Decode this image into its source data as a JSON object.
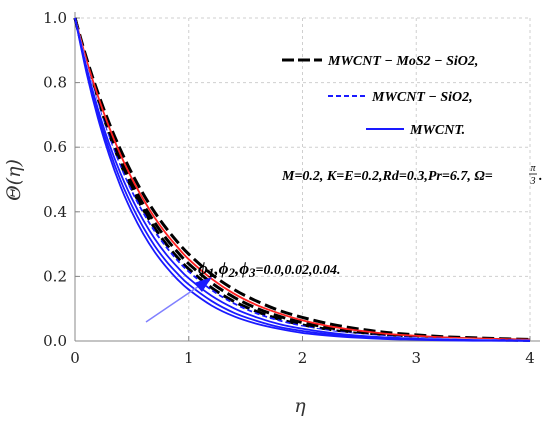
{
  "chart_data": {
    "type": "line",
    "xlabel": "η",
    "ylabel": "Θ(η)",
    "xlim": [
      0,
      4
    ],
    "ylim": [
      0,
      1
    ],
    "xticks": [
      "0",
      "1",
      "2",
      "3",
      "4"
    ],
    "yticks": [
      "0.0",
      "0.2",
      "0.4",
      "0.6",
      "0.8",
      "1.0"
    ],
    "grid": true,
    "legend": {
      "placement": "top-right",
      "entries": [
        {
          "label": "MWCNT − MoS2 − SiO2,",
          "color": "#000000",
          "style": "long-dash"
        },
        {
          "label": "MWCNT − SiO2,",
          "color": "#1a1aff",
          "style": "short-dash"
        },
        {
          "label": "MWCNT.",
          "color": "#1a1aff",
          "style": "solid"
        }
      ]
    },
    "parameters_text": "M=0.2, K=E=0.2,Rd=0.3,Pr=6.7, Ω=",
    "omega_num": "π",
    "omega_den": "3",
    "phi_annotation": {
      "p1": "ϕ",
      "s1": "1",
      "p2": "ϕ",
      "s2": "2",
      "p3": "ϕ",
      "s3": "3",
      "values": "=0.0,0.02,0.04."
    },
    "x": [
      0,
      0.1,
      0.2,
      0.3,
      0.4,
      0.5,
      0.6,
      0.7,
      0.8,
      0.9,
      1.0,
      1.2,
      1.4,
      1.6,
      1.8,
      2.0,
      2.25,
      2.5,
      2.75,
      3.0,
      3.25,
      3.5,
      3.75,
      4.0
    ],
    "series": [
      {
        "group": "MWCNT − MoS2 − SiO2",
        "color": "#000000",
        "style": "long-dash",
        "values": [
          1,
          0.877,
          0.77,
          0.675,
          0.592,
          0.519,
          0.455,
          0.399,
          0.35,
          0.307,
          0.269,
          0.207,
          0.159,
          0.123,
          0.094,
          0.073,
          0.052,
          0.037,
          0.026,
          0.019,
          0.013,
          0.01,
          0.007,
          0.005
        ]
      },
      {
        "group": "MWCNT − MoS2 − SiO2",
        "color": "#000000",
        "style": "long-dash",
        "values": [
          1,
          0.866,
          0.751,
          0.651,
          0.564,
          0.489,
          0.423,
          0.367,
          0.318,
          0.276,
          0.239,
          0.18,
          0.135,
          0.101,
          0.076,
          0.057,
          0.04,
          0.027,
          0.019,
          0.013,
          0.009,
          0.006,
          0.004,
          0.003
        ]
      },
      {
        "group": "MWCNT − MoS2 − SiO2",
        "color": "#000000",
        "style": "long-dash",
        "values": [
          1,
          0.861,
          0.741,
          0.638,
          0.549,
          0.472,
          0.407,
          0.35,
          0.301,
          0.259,
          0.223,
          0.165,
          0.122,
          0.091,
          0.067,
          0.05,
          0.034,
          0.023,
          0.016,
          0.011,
          0.007,
          0.005,
          0.003,
          0.002
        ]
      },
      {
        "group": "MWCNT − SiO2",
        "color": "#ff2020",
        "style": "solid",
        "values": [
          1,
          0.871,
          0.76,
          0.662,
          0.577,
          0.503,
          0.439,
          0.382,
          0.333,
          0.291,
          0.253,
          0.193,
          0.146,
          0.111,
          0.085,
          0.064,
          0.045,
          0.032,
          0.022,
          0.016,
          0.011,
          0.008,
          0.006,
          0.004
        ]
      },
      {
        "group": "MWCNT − SiO2",
        "color": "#1a1aff",
        "style": "short-dash",
        "values": [
          1,
          0.857,
          0.735,
          0.63,
          0.54,
          0.463,
          0.397,
          0.34,
          0.292,
          0.25,
          0.215,
          0.158,
          0.116,
          0.085,
          0.063,
          0.046,
          0.031,
          0.021,
          0.014,
          0.01,
          0.007,
          0.004,
          0.003,
          0.002
        ]
      },
      {
        "group": "MWCNT − SiO2",
        "color": "#ffffff",
        "style": "solid",
        "values": [
          1,
          0.853,
          0.727,
          0.62,
          0.529,
          0.451,
          0.385,
          0.328,
          0.28,
          0.239,
          0.204,
          0.148,
          0.108,
          0.078,
          0.057,
          0.042,
          0.028,
          0.019,
          0.012,
          0.008,
          0.006,
          0.004,
          0.002,
          0.002
        ]
      },
      {
        "group": "MWCNT",
        "color": "#1a1aff",
        "style": "solid",
        "values": [
          1,
          0.849,
          0.72,
          0.611,
          0.519,
          0.441,
          0.374,
          0.317,
          0.269,
          0.229,
          0.194,
          0.14,
          0.101,
          0.073,
          0.052,
          0.038,
          0.025,
          0.016,
          0.011,
          0.007,
          0.005,
          0.003,
          0.002,
          0.001
        ]
      },
      {
        "group": "MWCNT",
        "color": "#1a1aff",
        "style": "solid",
        "values": [
          1,
          0.84,
          0.706,
          0.593,
          0.498,
          0.419,
          0.352,
          0.295,
          0.248,
          0.209,
          0.175,
          0.124,
          0.087,
          0.062,
          0.043,
          0.031,
          0.02,
          0.013,
          0.008,
          0.005,
          0.003,
          0.002,
          0.001,
          0.001
        ]
      },
      {
        "group": "MWCNT",
        "color": "#1a1aff",
        "style": "solid",
        "values": [
          1,
          0.832,
          0.692,
          0.576,
          0.479,
          0.399,
          0.332,
          0.276,
          0.23,
          0.191,
          0.159,
          0.11,
          0.076,
          0.053,
          0.037,
          0.025,
          0.016,
          0.01,
          0.006,
          0.004,
          0.002,
          0.001,
          0.001,
          0.0
        ]
      }
    ]
  }
}
